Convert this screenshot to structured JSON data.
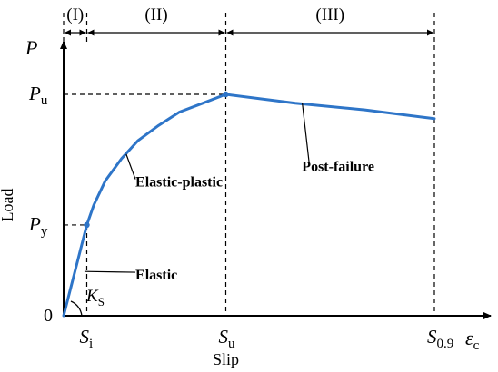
{
  "chart_data": {
    "type": "line",
    "xlabel": "Slip",
    "ylabel": "Load",
    "axis_symbols": {
      "y_main": "P",
      "y_sub": "",
      "x_main": "ε",
      "x_sub": "c"
    },
    "origin_label": "0",
    "x_ticks": [
      {
        "main": "S",
        "sub": "i",
        "value": 0.1
      },
      {
        "main": "S",
        "sub": "u",
        "value": 0.7
      },
      {
        "main": "S",
        "sub": "0.9",
        "value": 1.6
      }
    ],
    "y_ticks": [
      {
        "main": "P",
        "sub": "y",
        "value": 0.41
      },
      {
        "main": "P",
        "sub": "u",
        "value": 1.0
      }
    ],
    "xlim": [
      0,
      1.9
    ],
    "ylim": [
      0,
      1.3
    ],
    "stages": [
      {
        "label": "(I)",
        "from": 0,
        "to": 0.1
      },
      {
        "label": "(II)",
        "from": 0.1,
        "to": 0.7
      },
      {
        "label": "(III)",
        "from": 0.7,
        "to": 1.6
      }
    ],
    "series": [
      {
        "color": "#2e75c8",
        "points": [
          [
            0,
            0
          ],
          [
            0.1,
            0.41
          ],
          [
            0.13,
            0.5
          ],
          [
            0.18,
            0.61
          ],
          [
            0.25,
            0.71
          ],
          [
            0.32,
            0.79
          ],
          [
            0.41,
            0.86
          ],
          [
            0.5,
            0.92
          ],
          [
            0.6,
            0.96
          ],
          [
            0.7,
            1.0
          ],
          [
            1.0,
            0.96
          ],
          [
            1.3,
            0.93
          ],
          [
            1.6,
            0.89
          ]
        ]
      }
    ],
    "key_points": [
      [
        0.1,
        0.41
      ],
      [
        0.7,
        1.0
      ]
    ],
    "annotations": [
      {
        "text": "Elastic",
        "anchor": [
          0.09,
          0.2
        ],
        "label_at": [
          0.31,
          0.18
        ]
      },
      {
        "text": "Elastic-plastic",
        "anchor": [
          0.27,
          0.73
        ],
        "label_at": [
          0.31,
          0.6
        ]
      },
      {
        "text": "Post-failure",
        "anchor": [
          1.03,
          0.96
        ],
        "label_at": [
          1.06,
          0.67
        ]
      }
    ],
    "stiffness_label": {
      "main": "K",
      "sub": "S"
    },
    "line_color": "#2e75c8"
  }
}
